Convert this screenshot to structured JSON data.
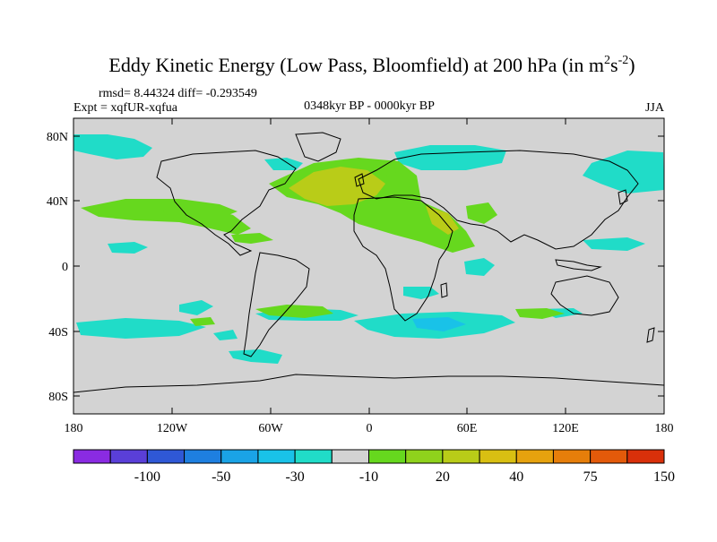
{
  "title": {
    "main": "Eddy Kinetic Energy (Low Pass, Bloomfield) at 200 hPa (in m",
    "sup1": "2",
    "mid": "s",
    "sup2": "-2",
    "end": ")"
  },
  "stats": "rmsd= 8.44324 diff= -0.293549",
  "expt": "Expt = xqfUR-xqfua",
  "period": "0348kyr BP - 0000kyr BP",
  "season": "JJA",
  "axes": {
    "lat_ticks": [
      "80N",
      "40N",
      "0",
      "40S",
      "80S"
    ],
    "lon_ticks": [
      "180",
      "120W",
      "60W",
      "0",
      "60E",
      "120E",
      "180"
    ]
  },
  "colorbar": {
    "colors": [
      "#8a2be2",
      "#5a3fd8",
      "#2f58d6",
      "#1e7fe0",
      "#1aa3e6",
      "#19c2e8",
      "#20dcc8",
      "#d3d3d3",
      "#66d81e",
      "#8fd21c",
      "#b9cc18",
      "#d9bf12",
      "#e6a20e",
      "#e67e0a",
      "#e35a0a",
      "#d9300a"
    ],
    "labels": [
      "-100",
      "-50",
      "-30",
      "-10",
      "20",
      "40",
      "75",
      "150"
    ]
  },
  "colors": {
    "land_bg": "#d3d3d3",
    "cyan": "#20dcc8",
    "lightblue": "#19c2e8",
    "green": "#66d81e",
    "yellowgreen": "#b9cc18"
  }
}
